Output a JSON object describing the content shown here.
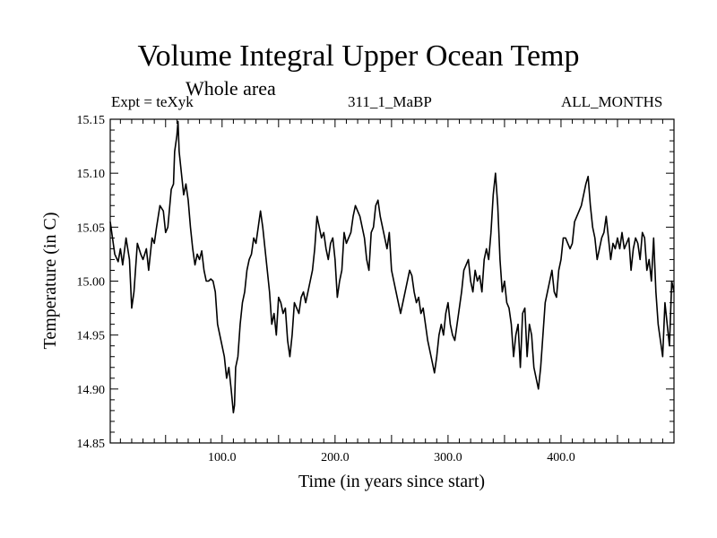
{
  "header": {
    "title": "Volume Integral Upper Ocean Temp",
    "subtitle": "Whole area",
    "expt": "Expt = teXyk",
    "run_id": "311_1_MaBP",
    "months": "ALL_MONTHS"
  },
  "chart_data": {
    "type": "line",
    "title": "Volume Integral Upper Ocean Temp",
    "xlabel": "Time (in years since start)",
    "ylabel": "Temperature (in C)",
    "xlim": [
      1,
      500
    ],
    "ylim": [
      14.85,
      15.15
    ],
    "x_ticks": [
      "100.0",
      "200.0",
      "300.0",
      "400.0"
    ],
    "y_ticks": [
      "14.85",
      "14.90",
      "14.95",
      "15.00",
      "15.05",
      "15.10",
      "15.15"
    ],
    "grid": false,
    "line_color": "#000000",
    "series": [
      {
        "x": [
          1,
          3,
          5,
          8,
          10,
          12,
          15,
          18,
          20,
          22,
          25,
          28,
          30,
          33,
          35,
          38,
          40,
          42,
          45,
          48,
          50,
          52,
          55,
          57,
          58,
          60,
          61,
          62,
          64,
          66,
          68,
          70,
          72,
          74,
          76,
          78,
          80,
          82,
          84,
          86,
          88,
          90,
          92,
          94,
          96,
          98,
          100,
          102,
          104,
          106,
          108,
          110,
          111,
          112,
          114,
          116,
          118,
          120,
          122,
          124,
          126,
          128,
          130,
          132,
          134,
          136,
          138,
          140,
          142,
          144,
          146,
          148,
          150,
          152,
          154,
          156,
          158,
          160,
          162,
          164,
          166,
          168,
          170,
          172,
          174,
          176,
          178,
          180,
          182,
          184,
          186,
          188,
          190,
          192,
          194,
          196,
          198,
          200,
          202,
          204,
          206,
          208,
          210,
          212,
          214,
          216,
          218,
          220,
          222,
          224,
          226,
          228,
          230,
          232,
          234,
          236,
          238,
          240,
          242,
          244,
          246,
          248,
          250,
          252,
          254,
          256,
          258,
          260,
          262,
          264,
          266,
          268,
          270,
          272,
          274,
          276,
          278,
          280,
          282,
          284,
          286,
          288,
          290,
          292,
          294,
          296,
          298,
          300,
          302,
          304,
          306,
          308,
          310,
          312,
          314,
          316,
          318,
          320,
          322,
          324,
          326,
          328,
          330,
          332,
          334,
          336,
          338,
          340,
          342,
          344,
          346,
          348,
          350,
          352,
          354,
          356,
          358,
          360,
          362,
          364,
          366,
          368,
          370,
          372,
          374,
          376,
          378,
          380,
          382,
          384,
          386,
          388,
          390,
          392,
          394,
          396,
          398,
          400,
          402,
          404,
          406,
          408,
          410,
          412,
          414,
          416,
          418,
          420,
          422,
          424,
          426,
          428,
          430,
          432,
          434,
          436,
          438,
          440,
          442,
          444,
          446,
          448,
          450,
          452,
          454,
          456,
          458,
          460,
          462,
          464,
          466,
          468,
          470,
          472,
          474,
          476,
          478,
          480,
          482,
          484,
          486,
          488,
          490,
          492,
          494,
          496,
          498,
          500
        ],
        "y": [
          15.055,
          15.04,
          15.025,
          15.018,
          15.03,
          15.015,
          15.04,
          15.02,
          14.975,
          14.99,
          15.035,
          15.025,
          15.02,
          15.03,
          15.01,
          15.04,
          15.035,
          15.05,
          15.07,
          15.065,
          15.045,
          15.05,
          15.085,
          15.09,
          15.12,
          15.135,
          15.148,
          15.12,
          15.1,
          15.08,
          15.09,
          15.075,
          15.05,
          15.03,
          15.015,
          15.025,
          15.02,
          15.028,
          15.01,
          15.0,
          15.0,
          15.002,
          15.0,
          14.99,
          14.96,
          14.95,
          14.94,
          14.93,
          14.91,
          14.92,
          14.9,
          14.878,
          14.885,
          14.92,
          14.93,
          14.96,
          14.98,
          14.99,
          15.01,
          15.02,
          15.025,
          15.04,
          15.035,
          15.05,
          15.065,
          15.05,
          15.03,
          15.01,
          14.99,
          14.96,
          14.97,
          14.95,
          14.985,
          14.98,
          14.97,
          14.975,
          14.945,
          14.93,
          14.95,
          14.98,
          14.975,
          14.97,
          14.985,
          14.99,
          14.98,
          14.99,
          15.0,
          15.01,
          15.03,
          15.06,
          15.05,
          15.04,
          15.045,
          15.03,
          15.02,
          15.035,
          15.04,
          15.02,
          14.985,
          15.0,
          15.01,
          15.045,
          15.035,
          15.04,
          15.045,
          15.06,
          15.07,
          15.065,
          15.06,
          15.05,
          15.04,
          15.02,
          15.01,
          15.045,
          15.05,
          15.07,
          15.075,
          15.06,
          15.05,
          15.04,
          15.03,
          15.045,
          15.01,
          15.0,
          14.99,
          14.98,
          14.97,
          14.98,
          14.99,
          15.0,
          15.01,
          15.005,
          14.99,
          14.98,
          14.985,
          14.97,
          14.975,
          14.96,
          14.945,
          14.935,
          14.925,
          14.915,
          14.93,
          14.95,
          14.96,
          14.95,
          14.97,
          14.98,
          14.96,
          14.95,
          14.945,
          14.96,
          14.975,
          14.99,
          15.01,
          15.015,
          15.02,
          15.0,
          14.99,
          15.01,
          15.0,
          15.005,
          14.99,
          15.02,
          15.03,
          15.02,
          15.045,
          15.08,
          15.1,
          15.07,
          15.02,
          14.99,
          15.0,
          14.98,
          14.975,
          14.96,
          14.93,
          14.95,
          14.96,
          14.92,
          14.97,
          14.975,
          14.93,
          14.96,
          14.95,
          14.92,
          14.91,
          14.9,
          14.92,
          14.95,
          14.98,
          14.99,
          15.0,
          15.01,
          14.99,
          14.985,
          15.01,
          15.02,
          15.04,
          15.04,
          15.035,
          15.03,
          15.035,
          15.055,
          15.06,
          15.065,
          15.07,
          15.08,
          15.09,
          15.097,
          15.07,
          15.05,
          15.04,
          15.02,
          15.03,
          15.04,
          15.045,
          15.06,
          15.04,
          15.02,
          15.035,
          15.03,
          15.04,
          15.03,
          15.045,
          15.03,
          15.035,
          15.04,
          15.01,
          15.03,
          15.04,
          15.035,
          15.02,
          15.045,
          15.04,
          15.01,
          15.02,
          15.0,
          15.04,
          14.99,
          14.96,
          14.945,
          14.93,
          14.98,
          14.96,
          14.94,
          15.0,
          14.99
        ]
      }
    ]
  }
}
